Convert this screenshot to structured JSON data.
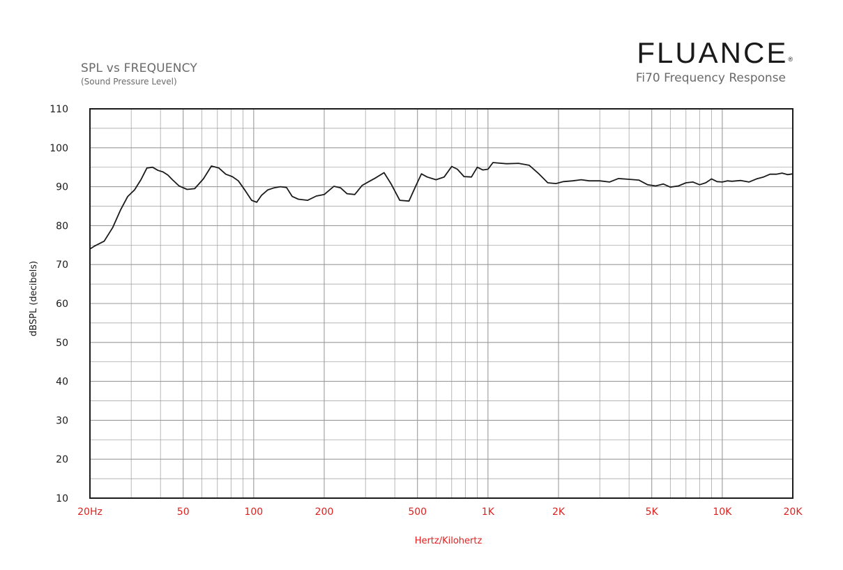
{
  "header": {
    "title": "SPL vs FREQUENCY",
    "subtitle": "(Sound Pressure Level)",
    "brand": "FLUANCE",
    "brand_mark": "®",
    "product": "Fi70 Frequency Response"
  },
  "colors": {
    "curve": "#1a1a1a",
    "grid": "#9a9a9a",
    "frame": "#1a1a1a",
    "x_tick_text": "#e0201e",
    "y_tick_text": "#1a1a1a"
  },
  "chart_data": {
    "type": "line",
    "title": "SPL vs FREQUENCY",
    "subtitle": "(Sound Pressure Level)",
    "xlabel": "Hertz/Kilohertz",
    "ylabel": "dBSPL (decibels)",
    "xscale": "log",
    "xlim": [
      20,
      20000
    ],
    "ylim": [
      10,
      110
    ],
    "grid": true,
    "y_ticks": [
      10,
      20,
      30,
      40,
      50,
      60,
      70,
      80,
      90,
      100,
      110
    ],
    "x_ticks": [
      {
        "value": 20,
        "label": "20Hz"
      },
      {
        "value": 50,
        "label": "50"
      },
      {
        "value": 100,
        "label": "100"
      },
      {
        "value": 200,
        "label": "200"
      },
      {
        "value": 500,
        "label": "500"
      },
      {
        "value": 1000,
        "label": "1K"
      },
      {
        "value": 2000,
        "label": "2K"
      },
      {
        "value": 5000,
        "label": "5K"
      },
      {
        "value": 10000,
        "label": "10K"
      },
      {
        "value": 20000,
        "label": "20K"
      }
    ],
    "series": [
      {
        "x": [
          20,
          21,
          23,
          25,
          27,
          29,
          31,
          33,
          35,
          37,
          39,
          41,
          43,
          45,
          48,
          52,
          56,
          61,
          66,
          71,
          76,
          81,
          86,
          92,
          98,
          103,
          108,
          115,
          122,
          130,
          138,
          146,
          155,
          170,
          185,
          200,
          220,
          235,
          250,
          270,
          290,
          310,
          330,
          360,
          385,
          420,
          460,
          490,
          520,
          550,
          600,
          650,
          700,
          740,
          790,
          850,
          900,
          950,
          1000,
          1050,
          1100,
          1200,
          1350,
          1500,
          1650,
          1800,
          1950,
          2100,
          2300,
          2500,
          2700,
          3000,
          3300,
          3600,
          4000,
          4400,
          4800,
          5200,
          5600,
          6000,
          6500,
          7000,
          7500,
          8000,
          8500,
          9000,
          9500,
          10000,
          10500,
          11000,
          12000,
          13000,
          14000,
          15000,
          16000,
          17000,
          18000,
          19000,
          20000
        ],
        "y": [
          74,
          74.8,
          76,
          79.5,
          84,
          87.5,
          89.2,
          91.8,
          94.8,
          95,
          94.2,
          93.8,
          93,
          91.8,
          90.2,
          89.3,
          89.5,
          92,
          95.3,
          94.8,
          93.2,
          92.6,
          91.5,
          89,
          86.5,
          86,
          87.8,
          89.2,
          89.7,
          90,
          89.8,
          87.5,
          86.8,
          86.5,
          87.6,
          88,
          90.1,
          89.7,
          88.2,
          88,
          90.3,
          91.3,
          92.2,
          93.6,
          90.8,
          86.5,
          86.3,
          90,
          93.3,
          92.5,
          91.8,
          92.5,
          95.2,
          94.5,
          92.6,
          92.5,
          95,
          94.3,
          94.5,
          96.2,
          96.1,
          95.9,
          96,
          95.5,
          93.3,
          91,
          90.8,
          91.3,
          91.5,
          91.8,
          91.5,
          91.5,
          91.2,
          92.1,
          91.9,
          91.7,
          90.5,
          90.2,
          90.7,
          89.9,
          90.2,
          91,
          91.2,
          90.5,
          91,
          92,
          91.3,
          91.2,
          91.5,
          91.4,
          91.6,
          91.2,
          92,
          92.5,
          93.2,
          93.2,
          93.5,
          93.1,
          93.3
        ]
      }
    ]
  }
}
